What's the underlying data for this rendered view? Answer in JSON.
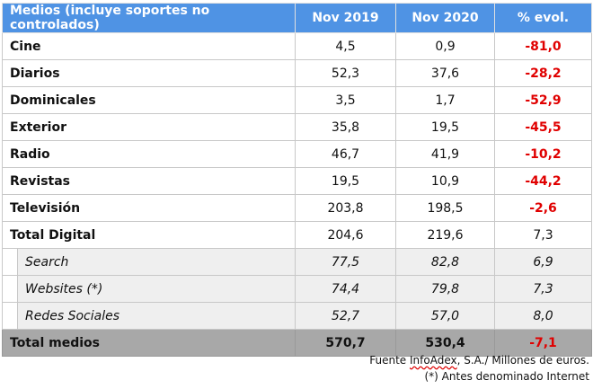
{
  "header": {
    "medios": "Medios (incluye soportes no controlados)",
    "y2019": "Nov 2019",
    "y2020": "Nov 2020",
    "evol": "% evol."
  },
  "rows": [
    {
      "name": "Cine",
      "v2019": "4,5",
      "v2020": "0,9",
      "evol": "-81,0"
    },
    {
      "name": "Diarios",
      "v2019": "52,3",
      "v2020": "37,6",
      "evol": "-28,2"
    },
    {
      "name": "Dominicales",
      "v2019": "3,5",
      "v2020": "1,7",
      "evol": "-52,9"
    },
    {
      "name": "Exterior",
      "v2019": "35,8",
      "v2020": "19,5",
      "evol": "-45,5"
    },
    {
      "name": "Radio",
      "v2019": "46,7",
      "v2020": "41,9",
      "evol": "-10,2"
    },
    {
      "name": "Revistas",
      "v2019": "19,5",
      "v2020": "10,9",
      "evol": "-44,2"
    },
    {
      "name": "Televisión",
      "v2019": "203,8",
      "v2020": "198,5",
      "evol": "-2,6"
    },
    {
      "name": "Total Digital",
      "v2019": "204,6",
      "v2020": "219,6",
      "evol": "7,3"
    }
  ],
  "subrows": [
    {
      "name": "Search",
      "v2019": "77,5",
      "v2020": "82,8",
      "evol": "6,9"
    },
    {
      "name": "Websites (*)",
      "v2019": "74,4",
      "v2020": "79,8",
      "evol": "7,3"
    },
    {
      "name": "Redes Sociales",
      "v2019": "52,7",
      "v2020": "57,0",
      "evol": "8,0"
    }
  ],
  "total": {
    "name": "Total medios",
    "v2019": "570,7",
    "v2020": "530,4",
    "evol": "-7,1"
  },
  "footer": {
    "source_prefix": "Fuente ",
    "source_name": "InfoAdex",
    "source_suffix": ", S.A./ Millones de euros.",
    "note": "(*) Antes denominado Internet"
  }
}
